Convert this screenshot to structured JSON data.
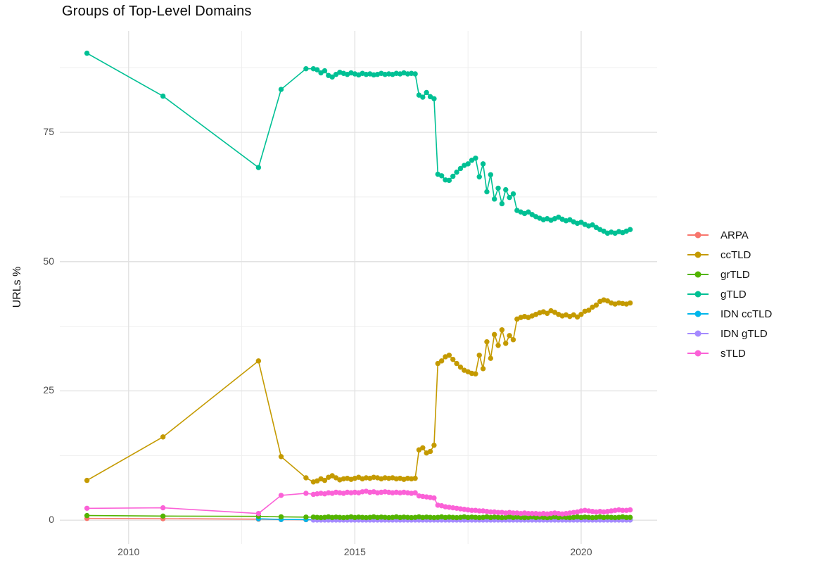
{
  "chart_data": {
    "type": "line",
    "title": "Groups of Top-Level Domains",
    "xlabel": "",
    "ylabel": "URLs %",
    "xlim": [
      2008.48,
      2021.68
    ],
    "ylim": [
      -4.6,
      94.6
    ],
    "grid": "on",
    "legend_position": "right",
    "x_axis": {
      "tick_labels": [
        "2010",
        "2015",
        "2020"
      ],
      "tick_values": [
        2010,
        2015,
        2020
      ],
      "minor_values": [
        2012.5,
        2017.5
      ]
    },
    "y_axis": {
      "tick_labels": [
        "0",
        "25",
        "50",
        "75"
      ],
      "tick_values": [
        0,
        25,
        50,
        75
      ],
      "minor_values": [
        12.5,
        37.5,
        62.5,
        87.5
      ]
    },
    "legend_order": [
      "ARPA",
      "ccTLD",
      "grTLD",
      "gTLD",
      "IDN ccTLD",
      "IDN gTLD",
      "sTLD"
    ],
    "series": [
      {
        "name": "ARPA",
        "color": "#F8766D",
        "sparse": [
          [
            2009.08,
            0.35
          ],
          [
            2010.76,
            0.3
          ],
          [
            2012.87,
            0.2
          ],
          [
            2013.37,
            0.12
          ],
          [
            2013.92,
            0.1
          ]
        ],
        "dense_const": {
          "start": 2014.0833,
          "step": 0.083333,
          "count": 85,
          "value": 0.1
        }
      },
      {
        "name": "IDN ccTLD",
        "color": "#00B6EB",
        "sparse": [
          [
            2012.87,
            0.28
          ],
          [
            2013.37,
            0.15
          ],
          [
            2013.92,
            0.12
          ]
        ],
        "dense_const": {
          "start": 2014.0833,
          "step": 0.083333,
          "count": 85,
          "value": 0.08
        }
      },
      {
        "name": "IDN gTLD",
        "color": "#A58AFF",
        "sparse": [],
        "dense_const": {
          "start": 2014.0833,
          "step": 0.083333,
          "count": 85,
          "value": 0.04
        }
      },
      {
        "name": "grTLD",
        "color": "#53B400",
        "sparse": [
          [
            2009.08,
            0.9
          ],
          [
            2010.76,
            0.8
          ],
          [
            2012.87,
            0.75
          ],
          [
            2013.37,
            0.65
          ],
          [
            2013.92,
            0.6
          ]
        ],
        "dense": {
          "start": 2014.0833,
          "step": 0.083333,
          "values": [
            0.6,
            0.55,
            0.5,
            0.55,
            0.65,
            0.52,
            0.6,
            0.55,
            0.5,
            0.55,
            0.65,
            0.52,
            0.6,
            0.55,
            0.5,
            0.55,
            0.65,
            0.52,
            0.6,
            0.55,
            0.5,
            0.55,
            0.65,
            0.52,
            0.6,
            0.55,
            0.5,
            0.55,
            0.65,
            0.52,
            0.6,
            0.55,
            0.5,
            0.55,
            0.65,
            0.52,
            0.6,
            0.55,
            0.5,
            0.55,
            0.65,
            0.52,
            0.6,
            0.55,
            0.5,
            0.55,
            0.65,
            0.52,
            0.6,
            0.55,
            0.5,
            0.55,
            0.65,
            0.52,
            0.6,
            0.55,
            0.5,
            0.55,
            0.65,
            0.52,
            0.6,
            0.55,
            0.5,
            0.55,
            0.65,
            0.52,
            0.6,
            0.55,
            0.5,
            0.55,
            0.65,
            0.52,
            0.6,
            0.55,
            0.5,
            0.55,
            0.65,
            0.52,
            0.6,
            0.55,
            0.5,
            0.55,
            0.65,
            0.52,
            0.55
          ]
        }
      },
      {
        "name": "sTLD",
        "color": "#FB61D7",
        "sparse": [
          [
            2009.08,
            2.3
          ],
          [
            2010.76,
            2.4
          ],
          [
            2012.87,
            1.3
          ],
          [
            2013.37,
            4.8
          ],
          [
            2013.92,
            5.2
          ]
        ],
        "dense": {
          "start": 2014.0833,
          "step": 0.083333,
          "values": [
            5.0,
            5.1,
            5.2,
            5.1,
            5.3,
            5.2,
            5.4,
            5.3,
            5.2,
            5.4,
            5.3,
            5.4,
            5.3,
            5.5,
            5.6,
            5.4,
            5.5,
            5.3,
            5.4,
            5.5,
            5.4,
            5.3,
            5.4,
            5.3,
            5.4,
            5.3,
            5.2,
            5.3,
            4.7,
            4.6,
            4.5,
            4.4,
            4.3,
            2.9,
            2.8,
            2.6,
            2.5,
            2.4,
            2.3,
            2.2,
            2.1,
            2.0,
            1.9,
            1.9,
            1.8,
            1.8,
            1.7,
            1.6,
            1.6,
            1.5,
            1.5,
            1.4,
            1.5,
            1.4,
            1.4,
            1.3,
            1.4,
            1.3,
            1.3,
            1.3,
            1.2,
            1.3,
            1.2,
            1.3,
            1.4,
            1.3,
            1.2,
            1.3,
            1.4,
            1.5,
            1.6,
            1.8,
            1.9,
            1.8,
            1.7,
            1.6,
            1.7,
            1.6,
            1.7,
            1.8,
            1.9,
            2.0,
            1.9,
            1.9,
            2.0
          ]
        }
      },
      {
        "name": "ccTLD",
        "color": "#C49A00",
        "sparse": [
          [
            2009.08,
            7.7
          ],
          [
            2010.76,
            16.1
          ],
          [
            2012.87,
            30.8
          ],
          [
            2013.37,
            12.3
          ],
          [
            2013.92,
            8.2
          ]
        ],
        "dense": {
          "start": 2014.0833,
          "step": 0.083333,
          "values": [
            7.4,
            7.6,
            8.0,
            7.7,
            8.3,
            8.6,
            8.2,
            7.8,
            8.0,
            8.1,
            7.9,
            8.1,
            8.3,
            8.0,
            8.2,
            8.1,
            8.3,
            8.2,
            8.0,
            8.2,
            8.1,
            8.2,
            8.0,
            8.1,
            7.9,
            8.1,
            8.0,
            8.1,
            13.6,
            14.0,
            13.0,
            13.3,
            14.5,
            30.3,
            30.8,
            31.6,
            31.9,
            31.1,
            30.3,
            29.6,
            29.0,
            28.7,
            28.4,
            28.3,
            31.9,
            29.3,
            34.5,
            31.3,
            35.9,
            33.8,
            36.8,
            34.2,
            35.7,
            34.9,
            38.9,
            39.2,
            39.4,
            39.2,
            39.5,
            39.8,
            40.1,
            40.3,
            40.0,
            40.5,
            40.2,
            39.8,
            39.5,
            39.7,
            39.4,
            39.7,
            39.3,
            39.8,
            40.4,
            40.6,
            41.2,
            41.6,
            42.3,
            42.6,
            42.4,
            42.0,
            41.8,
            42.0,
            41.9,
            41.8,
            42.0
          ]
        }
      },
      {
        "name": "gTLD",
        "color": "#00C094",
        "sparse": [
          [
            2009.08,
            90.3
          ],
          [
            2010.76,
            82.0
          ],
          [
            2012.87,
            68.2
          ],
          [
            2013.37,
            83.3
          ],
          [
            2013.92,
            87.3
          ]
        ],
        "dense": {
          "start": 2014.0833,
          "step": 0.083333,
          "values": [
            87.3,
            87.1,
            86.5,
            86.9,
            86.0,
            85.7,
            86.2,
            86.6,
            86.4,
            86.2,
            86.5,
            86.3,
            86.1,
            86.4,
            86.2,
            86.3,
            86.1,
            86.2,
            86.4,
            86.2,
            86.3,
            86.2,
            86.4,
            86.3,
            86.5,
            86.3,
            86.4,
            86.3,
            82.2,
            81.8,
            82.7,
            81.9,
            81.5,
            66.9,
            66.6,
            65.8,
            65.7,
            66.5,
            67.3,
            68.0,
            68.6,
            68.9,
            69.6,
            70.0,
            66.4,
            68.9,
            63.5,
            66.8,
            62.1,
            64.2,
            61.2,
            63.9,
            62.4,
            63.1,
            59.9,
            59.6,
            59.3,
            59.6,
            59.1,
            58.7,
            58.4,
            58.1,
            58.3,
            58.0,
            58.3,
            58.6,
            58.2,
            57.9,
            58.1,
            57.7,
            57.4,
            57.6,
            57.2,
            56.9,
            57.1,
            56.6,
            56.2,
            55.9,
            55.5,
            55.7,
            55.5,
            55.8,
            55.6,
            55.9,
            56.2
          ]
        }
      }
    ]
  }
}
